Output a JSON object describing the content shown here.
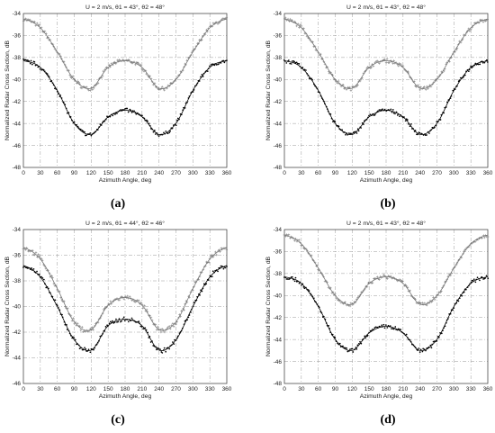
{
  "chart_data": [
    {
      "type": "scatter",
      "panel": "a",
      "caption": "(a)",
      "title": "U = 2 m/s, θ1 = 43°, θ2 = 48°",
      "xlabel": "Azimuth Angle, deg",
      "ylabel": "Normalized Radar Cross Section, dB",
      "xlim": [
        0,
        360
      ],
      "ylim": [
        -48,
        -34
      ],
      "xticks": [
        0,
        30,
        60,
        90,
        120,
        150,
        180,
        210,
        240,
        270,
        300,
        330,
        360
      ],
      "yticks": [
        -34,
        -36,
        -38,
        -40,
        -42,
        -44,
        -46,
        -48
      ],
      "grid": true,
      "series": [
        {
          "color": "#777777",
          "marker": "plus",
          "x": [
            0,
            30,
            60,
            90,
            120,
            150,
            180,
            210,
            240,
            270,
            300,
            330,
            360
          ],
          "y": [
            -34.5,
            -35.3,
            -37.5,
            -40.0,
            -40.8,
            -38.9,
            -38.3,
            -38.9,
            -40.8,
            -40.0,
            -37.5,
            -35.3,
            -34.5
          ]
        },
        {
          "color": "#000000",
          "marker": "dot",
          "x": [
            0,
            30,
            60,
            90,
            120,
            150,
            180,
            210,
            240,
            270,
            300,
            330,
            360
          ],
          "y": [
            -38.3,
            -38.9,
            -41.0,
            -44.0,
            -45.0,
            -43.4,
            -42.8,
            -43.4,
            -45.0,
            -44.0,
            -41.0,
            -38.9,
            -38.3
          ]
        }
      ]
    },
    {
      "type": "scatter",
      "panel": "b",
      "caption": "(b)",
      "title": "U = 2 m/s, θ1 = 43°, θ2 = 48°",
      "xlabel": "Azimuth Angle, deg",
      "ylabel": "Normalized Radar Cross Section, dB",
      "xlim": [
        0,
        360
      ],
      "ylim": [
        -48,
        -34
      ],
      "xticks": [
        0,
        30,
        60,
        90,
        120,
        150,
        180,
        210,
        240,
        270,
        300,
        330,
        360
      ],
      "yticks": [
        -34,
        -36,
        -38,
        -40,
        -42,
        -44,
        -46,
        -48
      ],
      "grid": true,
      "series": [
        {
          "color": "#777777",
          "marker": "plus",
          "x": [
            0,
            30,
            60,
            90,
            120,
            150,
            180,
            210,
            240,
            270,
            300,
            330,
            360
          ],
          "y": [
            -34.5,
            -35.3,
            -37.5,
            -40.0,
            -40.8,
            -38.9,
            -38.3,
            -38.9,
            -40.8,
            -40.0,
            -37.5,
            -35.3,
            -34.5
          ]
        },
        {
          "color": "#000000",
          "marker": "dot",
          "x": [
            0,
            30,
            60,
            90,
            120,
            150,
            180,
            210,
            240,
            270,
            300,
            330,
            360
          ],
          "y": [
            -38.3,
            -38.9,
            -41.0,
            -44.0,
            -45.0,
            -43.4,
            -42.8,
            -43.4,
            -45.0,
            -44.0,
            -41.0,
            -38.9,
            -38.3
          ]
        }
      ]
    },
    {
      "type": "scatter",
      "panel": "c",
      "caption": "(c)",
      "title": "U = 2 m/s, θ1 = 44°, θ2 = 46°",
      "xlabel": "Azimuth Angle, deg",
      "ylabel": "Normalized Radar Cross Section, dB",
      "xlim": [
        0,
        360
      ],
      "ylim": [
        -46,
        -34
      ],
      "xticks": [
        0,
        30,
        60,
        90,
        120,
        150,
        180,
        210,
        240,
        270,
        300,
        330,
        360
      ],
      "yticks": [
        -34,
        -36,
        -38,
        -40,
        -42,
        -44,
        -46
      ],
      "grid": true,
      "series": [
        {
          "color": "#777777",
          "marker": "plus",
          "x": [
            0,
            30,
            60,
            90,
            120,
            150,
            180,
            210,
            240,
            270,
            300,
            330,
            360
          ],
          "y": [
            -35.4,
            -36.3,
            -38.6,
            -41.2,
            -41.8,
            -39.9,
            -39.3,
            -39.9,
            -41.8,
            -41.2,
            -38.6,
            -36.3,
            -35.4
          ]
        },
        {
          "color": "#000000",
          "marker": "dot",
          "x": [
            0,
            30,
            60,
            90,
            120,
            150,
            180,
            210,
            240,
            270,
            300,
            330,
            360
          ],
          "y": [
            -36.8,
            -37.7,
            -40.0,
            -42.6,
            -43.4,
            -41.5,
            -41.0,
            -41.5,
            -43.4,
            -42.6,
            -40.0,
            -37.7,
            -36.8
          ]
        }
      ]
    },
    {
      "type": "scatter",
      "panel": "d",
      "caption": "(d)",
      "title": "U = 2 m/s, θ1 = 43°, θ2 = 48°",
      "xlabel": "Azimuth Angle, deg",
      "ylabel": "Normalized Radar Cross Section, dB",
      "xlim": [
        0,
        360
      ],
      "ylim": [
        -48,
        -34
      ],
      "xticks": [
        0,
        30,
        60,
        90,
        120,
        150,
        180,
        210,
        240,
        270,
        300,
        330,
        360
      ],
      "yticks": [
        -34,
        -36,
        -38,
        -40,
        -42,
        -44,
        -46,
        -48
      ],
      "grid": true,
      "series": [
        {
          "color": "#777777",
          "marker": "plus",
          "x": [
            0,
            30,
            60,
            90,
            120,
            150,
            180,
            210,
            240,
            270,
            300,
            330,
            360
          ],
          "y": [
            -34.5,
            -35.3,
            -37.5,
            -40.0,
            -40.8,
            -38.9,
            -38.3,
            -38.9,
            -40.8,
            -40.0,
            -37.5,
            -35.3,
            -34.5
          ]
        },
        {
          "color": "#000000",
          "marker": "dot",
          "x": [
            0,
            30,
            60,
            90,
            120,
            150,
            180,
            210,
            240,
            270,
            300,
            330,
            360
          ],
          "y": [
            -38.3,
            -38.9,
            -41.0,
            -44.0,
            -45.0,
            -43.4,
            -42.8,
            -43.4,
            -45.0,
            -44.0,
            -41.0,
            -38.9,
            -38.3
          ]
        }
      ]
    }
  ]
}
